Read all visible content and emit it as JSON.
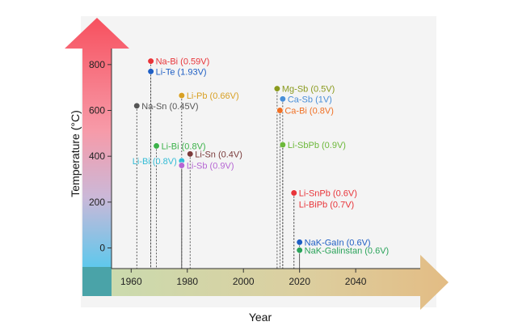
{
  "chart_data": {
    "type": "scatter",
    "title": "",
    "xlabel": "Year",
    "ylabel": "Temperature (°C)",
    "xlim": [
      1953,
      2063
    ],
    "ylim": [
      -90,
      870
    ],
    "xticks": [
      1960,
      1980,
      2000,
      2020,
      2040
    ],
    "yticks": [
      0,
      200,
      400,
      600,
      800
    ],
    "grid": false,
    "legend": "none",
    "points": [
      {
        "label": "Na-Bi (0.59V)",
        "x": 1967,
        "y": 815,
        "color": "#e8353a",
        "side": "right"
      },
      {
        "label": "Li-Te (1.93V)",
        "x": 1967,
        "y": 770,
        "color": "#1f5fc4",
        "side": "right"
      },
      {
        "label": "Na-Sn (0.45V)",
        "x": 1962,
        "y": 620,
        "color": "#555555",
        "side": "right"
      },
      {
        "label": "Li-Bi (0.8V)",
        "x": 1969,
        "y": 445,
        "color": "#3cb24a",
        "side": "right"
      },
      {
        "label": "Li-Bi (0.8V)",
        "x": 1978,
        "y": 380,
        "color": "#33bcd6",
        "side": "left"
      },
      {
        "label": "Li-Sb (0.9V)",
        "x": 1978,
        "y": 360,
        "color": "#b565d3",
        "side": "right"
      },
      {
        "label": "Li-Sn (0.4V)",
        "x": 1981,
        "y": 410,
        "color": "#7a3b3b",
        "side": "right"
      },
      {
        "label": "Li-Pb (0.66V)",
        "x": 1978,
        "y": 665,
        "color": "#d8a024",
        "side": "right"
      },
      {
        "label": "Mg-Sb (0.5V)",
        "x": 2012,
        "y": 695,
        "color": "#8a9a1e",
        "side": "right"
      },
      {
        "label": "Ca-Sb (1V)",
        "x": 2014,
        "y": 650,
        "color": "#4a8fd8",
        "side": "right"
      },
      {
        "label": "Ca-Bi (0.8V)",
        "x": 2013,
        "y": 600,
        "color": "#f07024",
        "side": "right"
      },
      {
        "label": "Li-SbPb (0.9V)",
        "x": 2014,
        "y": 450,
        "color": "#6cb83a",
        "side": "right"
      },
      {
        "label": "Li-SnPb (0.6V)",
        "x": 2018,
        "y": 240,
        "color": "#e8353a",
        "side": "right"
      },
      {
        "label": "Li-BiPb (0.7V)",
        "x": 2018,
        "y": 240,
        "color": "#e8353a",
        "side": "right-below"
      },
      {
        "label": "NaK-GaIn (0.6V)",
        "x": 2020,
        "y": 25,
        "color": "#1f5fc4",
        "side": "right"
      },
      {
        "label": "NaK-Galinstan (0.6V)",
        "x": 2020,
        "y": -10,
        "color": "#2aa35a",
        "side": "right"
      }
    ]
  }
}
